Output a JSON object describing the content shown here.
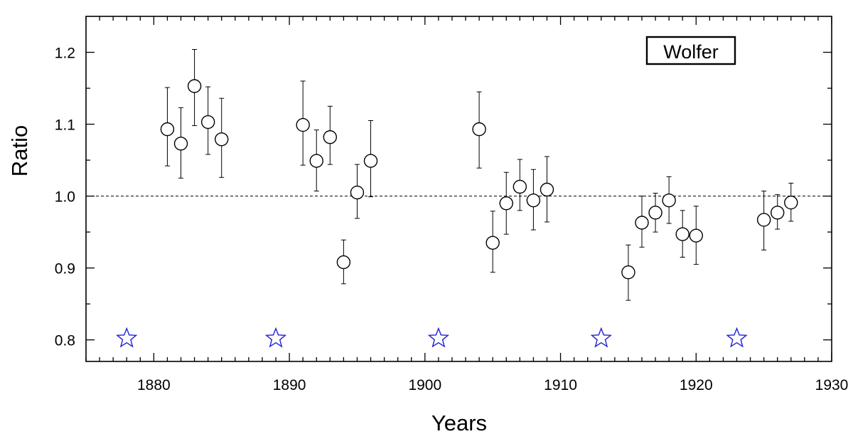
{
  "chart_data": {
    "type": "scatter",
    "title": "",
    "xlabel": "Years",
    "ylabel": "Ratio",
    "xlim": [
      1875,
      1930
    ],
    "ylim": [
      0.77,
      1.25
    ],
    "x_ticks": [
      1880,
      1890,
      1900,
      1910,
      1920,
      1930
    ],
    "x_tick_labels": [
      "1880",
      "1890",
      "1900",
      "1910",
      "1920",
      "1930"
    ],
    "y_ticks": [
      0.8,
      0.9,
      1.0,
      1.1,
      1.2
    ],
    "y_tick_labels": [
      "0.8",
      "0.9",
      "1.0",
      "1.1",
      "1.2"
    ],
    "reference_line": {
      "y": 1.0,
      "style": "dashed"
    },
    "annotation_box": {
      "text": "Wolfer",
      "placement": "top-right"
    },
    "grid": false,
    "series": [
      {
        "marker": "open-circle",
        "color": "#000000",
        "points": [
          {
            "x": 1881,
            "y": 1.093,
            "err_low": 1.042,
            "err_high": 1.151
          },
          {
            "x": 1882,
            "y": 1.073,
            "err_low": 1.025,
            "err_high": 1.123
          },
          {
            "x": 1883,
            "y": 1.153,
            "err_low": 1.098,
            "err_high": 1.204
          },
          {
            "x": 1884,
            "y": 1.103,
            "err_low": 1.058,
            "err_high": 1.152
          },
          {
            "x": 1885,
            "y": 1.079,
            "err_low": 1.026,
            "err_high": 1.136
          },
          {
            "x": 1891,
            "y": 1.099,
            "err_low": 1.043,
            "err_high": 1.16
          },
          {
            "x": 1892,
            "y": 1.049,
            "err_low": 1.007,
            "err_high": 1.092
          },
          {
            "x": 1893,
            "y": 1.082,
            "err_low": 1.044,
            "err_high": 1.125
          },
          {
            "x": 1894,
            "y": 0.908,
            "err_low": 0.878,
            "err_high": 0.939
          },
          {
            "x": 1895,
            "y": 1.005,
            "err_low": 0.969,
            "err_high": 1.044
          },
          {
            "x": 1896,
            "y": 1.049,
            "err_low": 0.999,
            "err_high": 1.105
          },
          {
            "x": 1904,
            "y": 1.093,
            "err_low": 1.039,
            "err_high": 1.145
          },
          {
            "x": 1905,
            "y": 0.935,
            "err_low": 0.894,
            "err_high": 0.979
          },
          {
            "x": 1906,
            "y": 0.99,
            "err_low": 0.947,
            "err_high": 1.033
          },
          {
            "x": 1907,
            "y": 1.013,
            "err_low": 0.98,
            "err_high": 1.051
          },
          {
            "x": 1908,
            "y": 0.994,
            "err_low": 0.953,
            "err_high": 1.037
          },
          {
            "x": 1909,
            "y": 1.009,
            "err_low": 0.964,
            "err_high": 1.055
          },
          {
            "x": 1915,
            "y": 0.894,
            "err_low": 0.855,
            "err_high": 0.932
          },
          {
            "x": 1916,
            "y": 0.963,
            "err_low": 0.929,
            "err_high": 1.0
          },
          {
            "x": 1917,
            "y": 0.977,
            "err_low": 0.95,
            "err_high": 1.004
          },
          {
            "x": 1918,
            "y": 0.994,
            "err_low": 0.962,
            "err_high": 1.027
          },
          {
            "x": 1919,
            "y": 0.947,
            "err_low": 0.915,
            "err_high": 0.98
          },
          {
            "x": 1920,
            "y": 0.945,
            "err_low": 0.905,
            "err_high": 0.986
          },
          {
            "x": 1925,
            "y": 0.967,
            "err_low": 0.925,
            "err_high": 1.007
          },
          {
            "x": 1926,
            "y": 0.977,
            "err_low": 0.954,
            "err_high": 1.002
          },
          {
            "x": 1927,
            "y": 0.991,
            "err_low": 0.965,
            "err_high": 1.018
          }
        ]
      },
      {
        "marker": "open-star",
        "color": "#1f1fd6",
        "points": [
          {
            "x": 1878,
            "y": 0.802
          },
          {
            "x": 1889,
            "y": 0.802
          },
          {
            "x": 1901,
            "y": 0.802
          },
          {
            "x": 1913,
            "y": 0.802
          },
          {
            "x": 1923,
            "y": 0.802
          }
        ]
      }
    ]
  }
}
